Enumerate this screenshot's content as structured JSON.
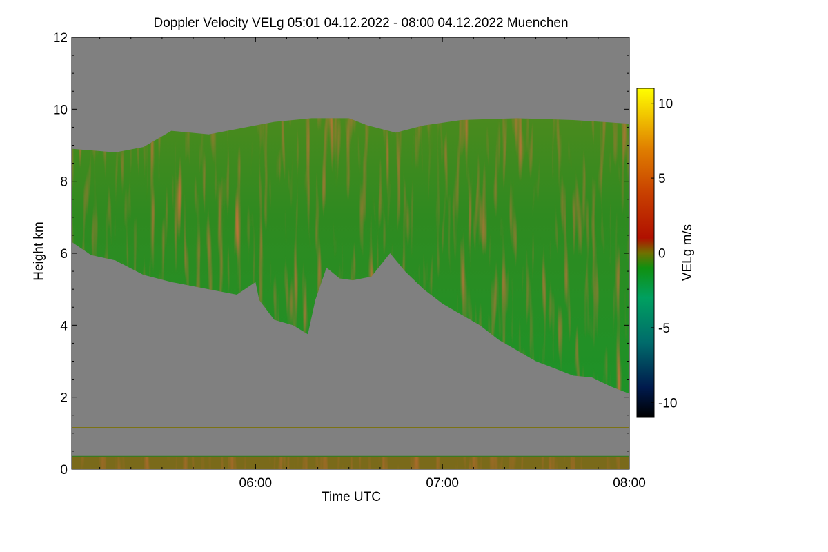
{
  "chart_data": {
    "type": "heatmap",
    "title": "Doppler Velocity VELg   05:01 04.12.2022 - 08:00 04.12.2022 Muenchen",
    "xlabel": "Time UTC",
    "ylabel": "Height km",
    "x_range_hours": [
      5.0167,
      8.0
    ],
    "y_range_km": [
      0,
      12
    ],
    "x_ticks": [
      {
        "value": 6.0,
        "label": "06:00"
      },
      {
        "value": 7.0,
        "label": "07:00"
      },
      {
        "value": 8.0,
        "label": "08:00"
      }
    ],
    "y_ticks": [
      {
        "value": 0,
        "label": "0"
      },
      {
        "value": 2,
        "label": "2"
      },
      {
        "value": 4,
        "label": "4"
      },
      {
        "value": 6,
        "label": "6"
      },
      {
        "value": 8,
        "label": "8"
      },
      {
        "value": 10,
        "label": "10"
      },
      {
        "value": 12,
        "label": "12"
      }
    ],
    "colorbar": {
      "label": "VELg m/s",
      "range": [
        -11,
        11
      ],
      "ticks": [
        {
          "value": 10,
          "label": "10"
        },
        {
          "value": 5,
          "label": "5"
        },
        {
          "value": 0,
          "label": "0"
        },
        {
          "value": -5,
          "label": "-5"
        },
        {
          "value": -10,
          "label": "-10"
        }
      ],
      "stops": [
        {
          "value": -11,
          "color": "#000000"
        },
        {
          "value": -9,
          "color": "#001a4d"
        },
        {
          "value": -6,
          "color": "#006b6b"
        },
        {
          "value": -3,
          "color": "#00a060"
        },
        {
          "value": -1,
          "color": "#109010"
        },
        {
          "value": 0,
          "color": "#707000"
        },
        {
          "value": 1,
          "color": "#b01000"
        },
        {
          "value": 4,
          "color": "#c84000"
        },
        {
          "value": 7,
          "color": "#e08000"
        },
        {
          "value": 11,
          "color": "#ffff00"
        }
      ]
    },
    "background_color": "#808080",
    "cloud_top_km": [
      [
        5.02,
        8.9
      ],
      [
        5.25,
        8.8
      ],
      [
        5.4,
        8.95
      ],
      [
        5.55,
        9.4
      ],
      [
        5.75,
        9.3
      ],
      [
        5.95,
        9.5
      ],
      [
        6.1,
        9.65
      ],
      [
        6.3,
        9.75
      ],
      [
        6.5,
        9.75
      ],
      [
        6.6,
        9.55
      ],
      [
        6.75,
        9.35
      ],
      [
        6.9,
        9.55
      ],
      [
        7.1,
        9.7
      ],
      [
        7.4,
        9.75
      ],
      [
        7.7,
        9.7
      ],
      [
        8.0,
        9.6
      ]
    ],
    "cloud_base_km": [
      [
        5.02,
        6.3
      ],
      [
        5.12,
        5.95
      ],
      [
        5.25,
        5.8
      ],
      [
        5.4,
        5.4
      ],
      [
        5.55,
        5.2
      ],
      [
        5.75,
        5.0
      ],
      [
        5.9,
        4.85
      ],
      [
        6.0,
        5.2
      ],
      [
        6.02,
        4.7
      ],
      [
        6.1,
        4.15
      ],
      [
        6.2,
        4.0
      ],
      [
        6.28,
        3.75
      ],
      [
        6.32,
        4.7
      ],
      [
        6.38,
        5.6
      ],
      [
        6.45,
        5.3
      ],
      [
        6.52,
        5.25
      ],
      [
        6.62,
        5.35
      ],
      [
        6.72,
        6.0
      ],
      [
        6.8,
        5.5
      ],
      [
        6.9,
        5.0
      ],
      [
        7.0,
        4.6
      ],
      [
        7.1,
        4.3
      ],
      [
        7.2,
        4.0
      ],
      [
        7.3,
        3.6
      ],
      [
        7.4,
        3.3
      ],
      [
        7.5,
        3.0
      ],
      [
        7.6,
        2.8
      ],
      [
        7.7,
        2.6
      ],
      [
        7.8,
        2.55
      ],
      [
        7.9,
        2.3
      ],
      [
        8.0,
        2.1
      ]
    ],
    "cloud_mean_velocity_ms": -1.5,
    "boundary_layer_km": [
      0,
      0.35
    ],
    "thin_layer_km": 1.15
  }
}
